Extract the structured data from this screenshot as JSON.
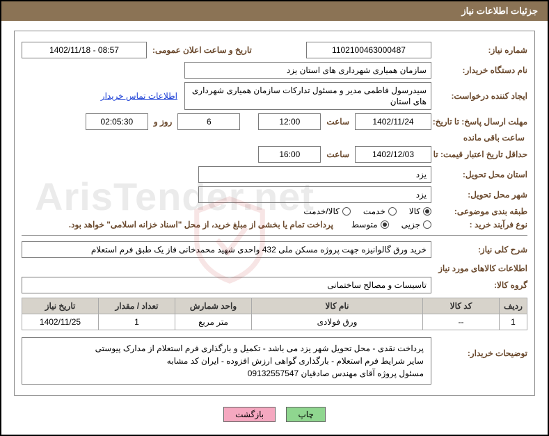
{
  "title": "جزئیات اطلاعات نیاز",
  "needNumber": {
    "label": "شماره نیاز:",
    "value": "1102100463000487"
  },
  "announceDateTime": {
    "label": "تاریخ و ساعت اعلان عمومی:",
    "value": "1402/11/18 - 08:57"
  },
  "buyerOrg": {
    "label": "نام دستگاه خریدار:",
    "value": "سازمان همیاری شهرداری های استان یزد"
  },
  "requester": {
    "label": "ایجاد کننده درخواست:",
    "value": "سیدرسول فاطمی مدیر و مسئول تدارکات سازمان همیاری شهرداری های استان"
  },
  "contactLink": "اطلاعات تماس خریدار",
  "deadline": {
    "label": "مهلت ارسال پاسخ: تا تاریخ:",
    "date": "1402/11/24",
    "hourLabel": "ساعت",
    "hour": "12:00",
    "dayLabel": "روز و",
    "days": "6",
    "remain": "02:05:30",
    "remainLabel": "ساعت باقی مانده"
  },
  "validity": {
    "label": "حداقل تاریخ اعتبار قیمت: تا تاریخ:",
    "date": "1402/12/03",
    "hourLabel": "ساعت",
    "hour": "16:00"
  },
  "deliveryProvince": {
    "label": "استان محل تحویل:",
    "value": "یزد"
  },
  "deliveryCity": {
    "label": "شهر محل تحویل:",
    "value": "یزد"
  },
  "category": {
    "label": "طبقه بندی موضوعی:",
    "options": [
      {
        "text": "کالا",
        "checked": true
      },
      {
        "text": "خدمت",
        "checked": false
      },
      {
        "text": "کالا/خدمت",
        "checked": false
      }
    ]
  },
  "procType": {
    "label": "نوع فرآیند خرید :",
    "options": [
      {
        "text": "جزیی",
        "checked": false
      },
      {
        "text": "متوسط",
        "checked": true
      }
    ],
    "note": "پرداخت تمام یا بخشی از مبلغ خرید، از محل \"اسناد خزانه اسلامی\" خواهد بود."
  },
  "generalDesc": {
    "label": "شرح کلی نیاز:",
    "value": "خرید ورق گالوانیزه جهت پروژه مسکن ملی 432 واحدی شهید محمدخانی فاز یک طبق فرم استعلام"
  },
  "goodsSectionTitle": "اطلاعات کالاهای مورد نیاز",
  "goodsGroup": {
    "label": "گروه کالا:",
    "value": "تاسیسات و مصالح ساختمانی"
  },
  "table": {
    "headers": [
      "ردیف",
      "کد کالا",
      "نام کالا",
      "واحد شمارش",
      "تعداد / مقدار",
      "تاریخ نیاز"
    ],
    "rows": [
      [
        "1",
        "--",
        "ورق فولادی",
        "متر مربع",
        "1",
        "1402/11/25"
      ]
    ]
  },
  "buyerNote": {
    "label": "توضیحات خریدار:",
    "lines": [
      "پرداخت نقدی - محل تحویل شهر یزد می باشد - تکمیل و بارگذاری فرم استعلام از مدارک پیوستی",
      "سایر شرایط فرم استعلام - بارگذاری گواهی ارزش افزوده - ایران کد مشابه",
      "مسئول پروژه آقای مهندس صادقیان 09132557547"
    ]
  },
  "buttons": {
    "print": "چاپ",
    "back": "بازگشت"
  },
  "colors": {
    "titleBg": "#8b7355",
    "labelColor": "#6b4a2e",
    "link": "#1a3ed6",
    "thBg": "#d7d3cb",
    "btnGreen": "#8fd68f",
    "btnPink": "#f5a8c0"
  }
}
